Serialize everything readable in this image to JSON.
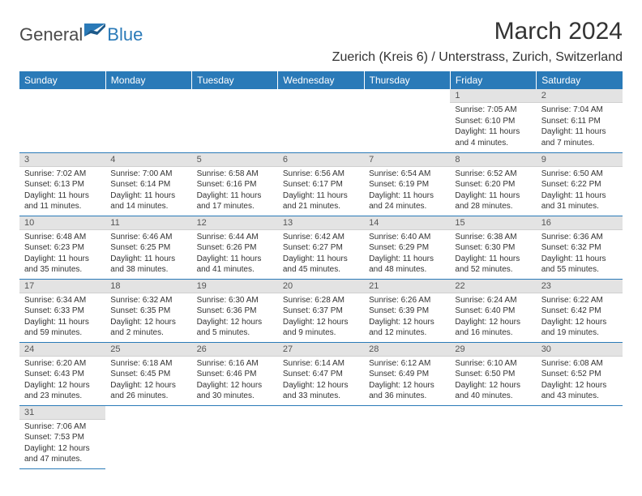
{
  "logo": {
    "part1": "General",
    "part2": "Blue"
  },
  "title": "March 2024",
  "location": "Zuerich (Kreis 6) / Unterstrass, Zurich, Switzerland",
  "colors": {
    "header_bg": "#2a7ab8",
    "header_fg": "#ffffff",
    "daynum_bg": "#e3e3e3",
    "daynum_fg": "#555555",
    "border": "#2a7ab8",
    "text": "#333333",
    "logo_gray": "#4a4a4a",
    "logo_blue": "#2a7ab8"
  },
  "weekdays": [
    "Sunday",
    "Monday",
    "Tuesday",
    "Wednesday",
    "Thursday",
    "Friday",
    "Saturday"
  ],
  "weeks": [
    [
      null,
      null,
      null,
      null,
      null,
      {
        "n": "1",
        "sr": "Sunrise: 7:05 AM",
        "ss": "Sunset: 6:10 PM",
        "dl": "Daylight: 11 hours and 4 minutes."
      },
      {
        "n": "2",
        "sr": "Sunrise: 7:04 AM",
        "ss": "Sunset: 6:11 PM",
        "dl": "Daylight: 11 hours and 7 minutes."
      }
    ],
    [
      {
        "n": "3",
        "sr": "Sunrise: 7:02 AM",
        "ss": "Sunset: 6:13 PM",
        "dl": "Daylight: 11 hours and 11 minutes."
      },
      {
        "n": "4",
        "sr": "Sunrise: 7:00 AM",
        "ss": "Sunset: 6:14 PM",
        "dl": "Daylight: 11 hours and 14 minutes."
      },
      {
        "n": "5",
        "sr": "Sunrise: 6:58 AM",
        "ss": "Sunset: 6:16 PM",
        "dl": "Daylight: 11 hours and 17 minutes."
      },
      {
        "n": "6",
        "sr": "Sunrise: 6:56 AM",
        "ss": "Sunset: 6:17 PM",
        "dl": "Daylight: 11 hours and 21 minutes."
      },
      {
        "n": "7",
        "sr": "Sunrise: 6:54 AM",
        "ss": "Sunset: 6:19 PM",
        "dl": "Daylight: 11 hours and 24 minutes."
      },
      {
        "n": "8",
        "sr": "Sunrise: 6:52 AM",
        "ss": "Sunset: 6:20 PM",
        "dl": "Daylight: 11 hours and 28 minutes."
      },
      {
        "n": "9",
        "sr": "Sunrise: 6:50 AM",
        "ss": "Sunset: 6:22 PM",
        "dl": "Daylight: 11 hours and 31 minutes."
      }
    ],
    [
      {
        "n": "10",
        "sr": "Sunrise: 6:48 AM",
        "ss": "Sunset: 6:23 PM",
        "dl": "Daylight: 11 hours and 35 minutes."
      },
      {
        "n": "11",
        "sr": "Sunrise: 6:46 AM",
        "ss": "Sunset: 6:25 PM",
        "dl": "Daylight: 11 hours and 38 minutes."
      },
      {
        "n": "12",
        "sr": "Sunrise: 6:44 AM",
        "ss": "Sunset: 6:26 PM",
        "dl": "Daylight: 11 hours and 41 minutes."
      },
      {
        "n": "13",
        "sr": "Sunrise: 6:42 AM",
        "ss": "Sunset: 6:27 PM",
        "dl": "Daylight: 11 hours and 45 minutes."
      },
      {
        "n": "14",
        "sr": "Sunrise: 6:40 AM",
        "ss": "Sunset: 6:29 PM",
        "dl": "Daylight: 11 hours and 48 minutes."
      },
      {
        "n": "15",
        "sr": "Sunrise: 6:38 AM",
        "ss": "Sunset: 6:30 PM",
        "dl": "Daylight: 11 hours and 52 minutes."
      },
      {
        "n": "16",
        "sr": "Sunrise: 6:36 AM",
        "ss": "Sunset: 6:32 PM",
        "dl": "Daylight: 11 hours and 55 minutes."
      }
    ],
    [
      {
        "n": "17",
        "sr": "Sunrise: 6:34 AM",
        "ss": "Sunset: 6:33 PM",
        "dl": "Daylight: 11 hours and 59 minutes."
      },
      {
        "n": "18",
        "sr": "Sunrise: 6:32 AM",
        "ss": "Sunset: 6:35 PM",
        "dl": "Daylight: 12 hours and 2 minutes."
      },
      {
        "n": "19",
        "sr": "Sunrise: 6:30 AM",
        "ss": "Sunset: 6:36 PM",
        "dl": "Daylight: 12 hours and 5 minutes."
      },
      {
        "n": "20",
        "sr": "Sunrise: 6:28 AM",
        "ss": "Sunset: 6:37 PM",
        "dl": "Daylight: 12 hours and 9 minutes."
      },
      {
        "n": "21",
        "sr": "Sunrise: 6:26 AM",
        "ss": "Sunset: 6:39 PM",
        "dl": "Daylight: 12 hours and 12 minutes."
      },
      {
        "n": "22",
        "sr": "Sunrise: 6:24 AM",
        "ss": "Sunset: 6:40 PM",
        "dl": "Daylight: 12 hours and 16 minutes."
      },
      {
        "n": "23",
        "sr": "Sunrise: 6:22 AM",
        "ss": "Sunset: 6:42 PM",
        "dl": "Daylight: 12 hours and 19 minutes."
      }
    ],
    [
      {
        "n": "24",
        "sr": "Sunrise: 6:20 AM",
        "ss": "Sunset: 6:43 PM",
        "dl": "Daylight: 12 hours and 23 minutes."
      },
      {
        "n": "25",
        "sr": "Sunrise: 6:18 AM",
        "ss": "Sunset: 6:45 PM",
        "dl": "Daylight: 12 hours and 26 minutes."
      },
      {
        "n": "26",
        "sr": "Sunrise: 6:16 AM",
        "ss": "Sunset: 6:46 PM",
        "dl": "Daylight: 12 hours and 30 minutes."
      },
      {
        "n": "27",
        "sr": "Sunrise: 6:14 AM",
        "ss": "Sunset: 6:47 PM",
        "dl": "Daylight: 12 hours and 33 minutes."
      },
      {
        "n": "28",
        "sr": "Sunrise: 6:12 AM",
        "ss": "Sunset: 6:49 PM",
        "dl": "Daylight: 12 hours and 36 minutes."
      },
      {
        "n": "29",
        "sr": "Sunrise: 6:10 AM",
        "ss": "Sunset: 6:50 PM",
        "dl": "Daylight: 12 hours and 40 minutes."
      },
      {
        "n": "30",
        "sr": "Sunrise: 6:08 AM",
        "ss": "Sunset: 6:52 PM",
        "dl": "Daylight: 12 hours and 43 minutes."
      }
    ],
    [
      {
        "n": "31",
        "sr": "Sunrise: 7:06 AM",
        "ss": "Sunset: 7:53 PM",
        "dl": "Daylight: 12 hours and 47 minutes."
      },
      null,
      null,
      null,
      null,
      null,
      null
    ]
  ]
}
